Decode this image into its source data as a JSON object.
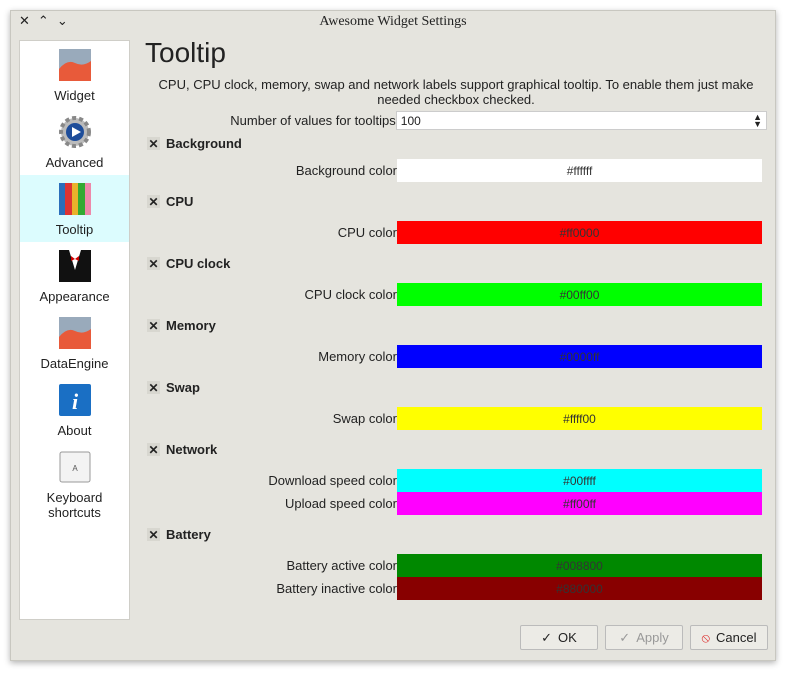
{
  "window": {
    "title": "Awesome Widget Settings",
    "close": "✕",
    "up": "⌃",
    "down": "⌄"
  },
  "sidebar": {
    "items": [
      {
        "label": "Widget",
        "icon": "widget-chart-icon"
      },
      {
        "label": "Advanced",
        "icon": "gear-icon"
      },
      {
        "label": "Tooltip",
        "icon": "tooltip-bars-icon",
        "selected": true
      },
      {
        "label": "Appearance",
        "icon": "tuxedo-icon"
      },
      {
        "label": "DataEngine",
        "icon": "widget-chart-icon"
      },
      {
        "label": "About",
        "icon": "info-icon"
      },
      {
        "label": "Keyboard shortcuts",
        "icon": "keyboard-key-icon"
      }
    ]
  },
  "main": {
    "title": "Tooltip",
    "description": "CPU, CPU clock, memory, swap and network labels support graphical tooltip. To enable them just make needed checkbox checked.",
    "num_values_label": "Number of values for tooltips",
    "num_values": "100",
    "sections": [
      {
        "label": "Background",
        "rows": [
          {
            "label": "Background color",
            "value": "#ffffff",
            "color": "#ffffff",
            "text": "#ffffff"
          }
        ]
      },
      {
        "label": "CPU",
        "rows": [
          {
            "label": "CPU color",
            "value": "#ff0000",
            "color": "#ff0000"
          }
        ]
      },
      {
        "label": "CPU clock",
        "rows": [
          {
            "label": "CPU clock color",
            "value": "#00ff00",
            "color": "#00ff00"
          }
        ]
      },
      {
        "label": "Memory",
        "rows": [
          {
            "label": "Memory color",
            "value": "#0000ff",
            "color": "#0000ff"
          }
        ]
      },
      {
        "label": "Swap",
        "rows": [
          {
            "label": "Swap color",
            "value": "#ffff00",
            "color": "#ffff00"
          }
        ]
      },
      {
        "label": "Network",
        "rows": [
          {
            "label": "Download speed color",
            "value": "#00ffff",
            "color": "#00ffff"
          },
          {
            "label": "Upload speed color",
            "value": "#ff00ff",
            "color": "#ff00ff"
          }
        ]
      },
      {
        "label": "Battery",
        "rows": [
          {
            "label": "Battery active color",
            "value": "#008800",
            "color": "#008800"
          },
          {
            "label": "Battery inactive color",
            "value": "#880000",
            "color": "#880000"
          }
        ]
      }
    ]
  },
  "buttons": {
    "ok": "OK",
    "apply": "Apply",
    "cancel": "Cancel"
  }
}
